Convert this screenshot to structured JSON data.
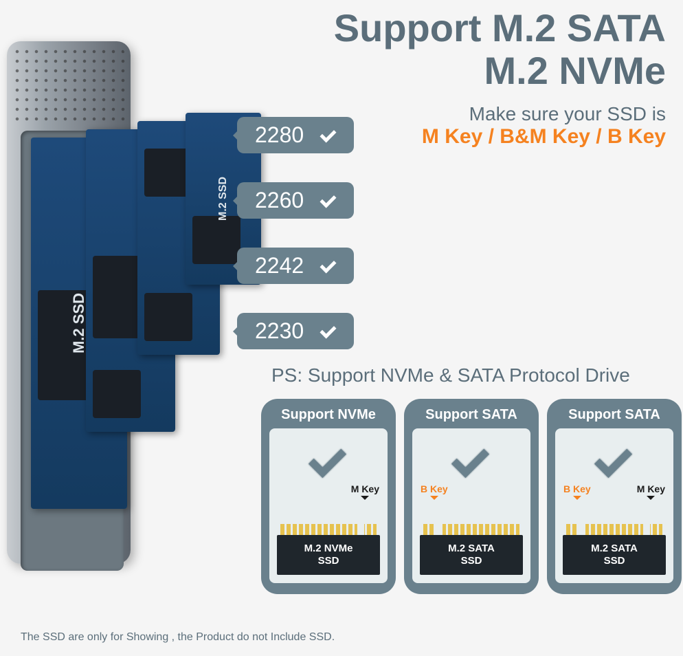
{
  "header": {
    "line1": "Support M.2 SATA",
    "line2": "M.2 NVMe"
  },
  "subhead": {
    "line1": "Make sure your SSD is",
    "line2": "M Key / B&M Key / B Key"
  },
  "sizes": [
    {
      "label": "2280"
    },
    {
      "label": "2260"
    },
    {
      "label": "2242"
    },
    {
      "label": "2230"
    }
  ],
  "ssd_stack_label": "M.2 SSD",
  "ps": "PS:  Support NVMe & SATA Protocol Drive",
  "cards": [
    {
      "title": "Support NVMe",
      "ssd_label": "M.2 NVMe\nSSD",
      "keys": [
        {
          "text": "M Key",
          "side": "right",
          "color": "black"
        }
      ],
      "notch": "right"
    },
    {
      "title": "Support SATA",
      "ssd_label": "M.2 SATA\nSSD",
      "keys": [
        {
          "text": "B Key",
          "side": "left",
          "color": "orange"
        }
      ],
      "notch": "left"
    },
    {
      "title": "Support SATA",
      "ssd_label": "M.2 SATA\nSSD",
      "keys": [
        {
          "text": "B Key",
          "side": "left",
          "color": "orange"
        },
        {
          "text": "M Key",
          "side": "right",
          "color": "black"
        }
      ],
      "notch": "both"
    }
  ],
  "footnote": "The SSD are only for Showing , the Product do not Include SSD.",
  "colors": {
    "accent_orange": "#f58220",
    "slate": "#6a818d",
    "text": "#5b6e7a",
    "chip": "#1f262c",
    "gold": "#e6c24f",
    "bg": "#f5f5f5"
  }
}
